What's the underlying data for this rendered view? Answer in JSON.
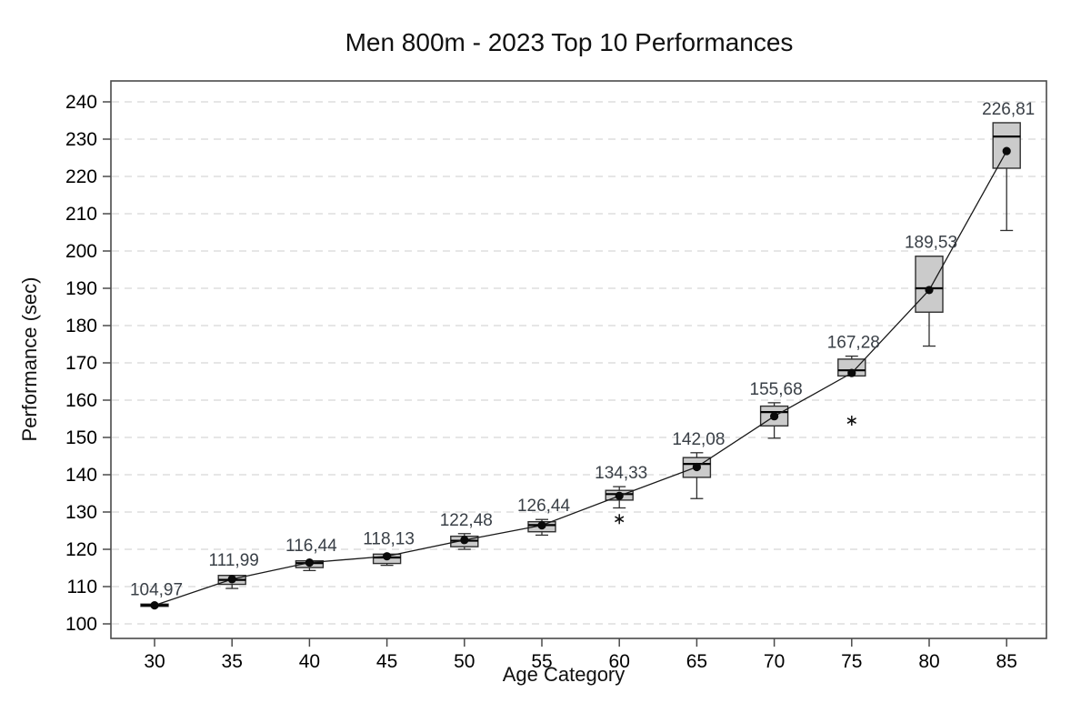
{
  "chart_data": {
    "type": "boxplot",
    "title": "Men 800m  - 2023 Top 10 Performances",
    "xlabel": "Age Category",
    "ylabel": "Performance (sec)",
    "x_categories": [
      "30",
      "35",
      "40",
      "45",
      "50",
      "55",
      "60",
      "65",
      "70",
      "75",
      "80",
      "85"
    ],
    "y_ticks": [
      100,
      110,
      120,
      130,
      140,
      150,
      160,
      170,
      180,
      190,
      200,
      210,
      220,
      230,
      240
    ],
    "ylim": [
      99,
      246
    ],
    "grid": "horizontal-dashed",
    "legend": "none",
    "boxes": [
      {
        "age": "30",
        "label": "104,97",
        "mean": 104.97,
        "lo": 104.5,
        "q1": 104.7,
        "med": 105.0,
        "q3": 105.3,
        "hi": 105.5,
        "outliers": []
      },
      {
        "age": "35",
        "label": "111,99",
        "mean": 111.99,
        "lo": 109.5,
        "q1": 110.6,
        "med": 111.8,
        "q3": 113.0,
        "hi": 113.4,
        "outliers": []
      },
      {
        "age": "40",
        "label": "116,44",
        "mean": 116.44,
        "lo": 114.3,
        "q1": 115.1,
        "med": 116.3,
        "q3": 116.9,
        "hi": 117.3,
        "outliers": []
      },
      {
        "age": "45",
        "label": "118,13",
        "mean": 118.13,
        "lo": 115.7,
        "q1": 116.2,
        "med": 117.8,
        "q3": 118.7,
        "hi": 119.1,
        "outliers": []
      },
      {
        "age": "50",
        "label": "122,48",
        "mean": 122.48,
        "lo": 120.0,
        "q1": 120.7,
        "med": 122.3,
        "q3": 123.5,
        "hi": 124.2,
        "outliers": []
      },
      {
        "age": "55",
        "label": "126,44",
        "mean": 126.44,
        "lo": 123.8,
        "q1": 124.7,
        "med": 126.5,
        "q3": 127.4,
        "hi": 128.0,
        "outliers": []
      },
      {
        "age": "60",
        "label": "134,33",
        "mean": 134.33,
        "lo": 131.1,
        "q1": 133.2,
        "med": 134.8,
        "q3": 135.8,
        "hi": 136.8,
        "outliers": [
          128.1
        ]
      },
      {
        "age": "65",
        "label": "142,08",
        "mean": 142.08,
        "lo": 133.6,
        "q1": 139.3,
        "med": 142.9,
        "q3": 144.6,
        "hi": 145.9,
        "outliers": []
      },
      {
        "age": "70",
        "label": "155,68",
        "mean": 155.68,
        "lo": 149.8,
        "q1": 153.1,
        "med": 156.8,
        "q3": 158.4,
        "hi": 159.3,
        "outliers": []
      },
      {
        "age": "75",
        "label": "167,28",
        "mean": 167.28,
        "lo": 166.5,
        "q1": 166.5,
        "med": 168.0,
        "q3": 171.0,
        "hi": 171.8,
        "outliers": [
          154.5
        ]
      },
      {
        "age": "80",
        "label": "189,53",
        "mean": 189.53,
        "lo": 174.5,
        "q1": 183.6,
        "med": 190.0,
        "q3": 198.6,
        "hi": 198.6,
        "outliers": []
      },
      {
        "age": "85",
        "label": "226,81",
        "mean": 226.81,
        "lo": 205.5,
        "q1": 222.2,
        "med": 230.7,
        "q3": 234.4,
        "hi": 234.4,
        "outliers": []
      }
    ],
    "colors": {
      "box_fill": "#cbcbcb",
      "box_stroke": "#2f2f2f",
      "median": "#000000",
      "mean_point": "#0a0a0a",
      "mean_line": "#1a1a1a",
      "grid": "#d6d6d6",
      "axis": "#4a4a4a",
      "tick_label": "#000000",
      "value_label": "#3a4047"
    }
  }
}
